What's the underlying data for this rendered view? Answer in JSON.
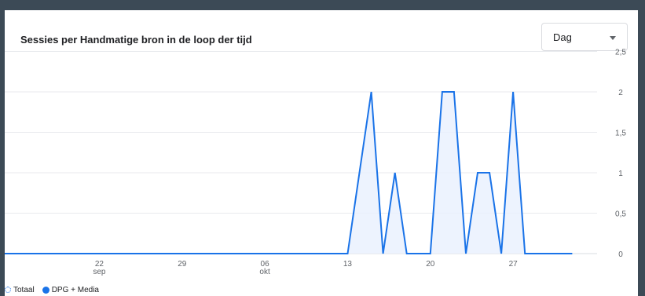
{
  "card": {
    "title": "Sessies per Handmatige bron in de loop der tijd",
    "period_select": "Dag"
  },
  "legend": [
    {
      "label": "Totaal",
      "style": "hollow"
    },
    {
      "label": "DPG + Media",
      "style": "solid"
    }
  ],
  "colors": {
    "series": "#1a73e8",
    "fill": "#e8f0fe",
    "grid": "#e8eaed"
  },
  "chart_data": {
    "type": "area",
    "title": "Sessies per Handmatige bron in de loop der tijd",
    "ylim": [
      0,
      2.5
    ],
    "y_ticks": [
      "2,5",
      "2",
      "1,5",
      "1",
      "0,5",
      "0"
    ],
    "y_tick_values": [
      2.5,
      2,
      1.5,
      1,
      0.5,
      0
    ],
    "x_ticks": [
      {
        "day": 22,
        "label": "22",
        "sub": "sep"
      },
      {
        "day": 29,
        "label": "29",
        "sub": ""
      },
      {
        "day": 36,
        "label": "06",
        "sub": "okt"
      },
      {
        "day": 43,
        "label": "13",
        "sub": ""
      },
      {
        "day": 50,
        "label": "20",
        "sub": ""
      },
      {
        "day": 57,
        "label": "27",
        "sub": ""
      }
    ],
    "series": [
      {
        "name": "DPG + Media",
        "points": [
          [
            "14 sep",
            0
          ],
          [
            "15 sep",
            0
          ],
          [
            "16 sep",
            0
          ],
          [
            "17 sep",
            0
          ],
          [
            "18 sep",
            0
          ],
          [
            "19 sep",
            0
          ],
          [
            "20 sep",
            0
          ],
          [
            "21 sep",
            0
          ],
          [
            "22 sep",
            0
          ],
          [
            "23 sep",
            0
          ],
          [
            "24 sep",
            0
          ],
          [
            "25 sep",
            0
          ],
          [
            "26 sep",
            0
          ],
          [
            "27 sep",
            0
          ],
          [
            "28 sep",
            0
          ],
          [
            "29 sep",
            0
          ],
          [
            "30 sep",
            0
          ],
          [
            "1 okt",
            0
          ],
          [
            "2 okt",
            0
          ],
          [
            "3 okt",
            0
          ],
          [
            "4 okt",
            0
          ],
          [
            "5 okt",
            0
          ],
          [
            "6 okt",
            0
          ],
          [
            "7 okt",
            0
          ],
          [
            "8 okt",
            0
          ],
          [
            "9 okt",
            0
          ],
          [
            "10 okt",
            0
          ],
          [
            "11 okt",
            0
          ],
          [
            "12 okt",
            0
          ],
          [
            "13 okt",
            0
          ],
          [
            "14 okt",
            1
          ],
          [
            "15 okt",
            2
          ],
          [
            "16 okt",
            0
          ],
          [
            "17 okt",
            1
          ],
          [
            "18 okt",
            0
          ],
          [
            "19 okt",
            0
          ],
          [
            "20 okt",
            0
          ],
          [
            "21 okt",
            2
          ],
          [
            "22 okt",
            2
          ],
          [
            "23 okt",
            0
          ],
          [
            "24 okt",
            1
          ],
          [
            "25 okt",
            1
          ],
          [
            "26 okt",
            0
          ],
          [
            "27 okt",
            2
          ],
          [
            "28 okt",
            0
          ],
          [
            "29 okt",
            0
          ],
          [
            "30 okt",
            0
          ],
          [
            "31 okt",
            0
          ],
          [
            "1 nov",
            0
          ]
        ]
      }
    ]
  }
}
